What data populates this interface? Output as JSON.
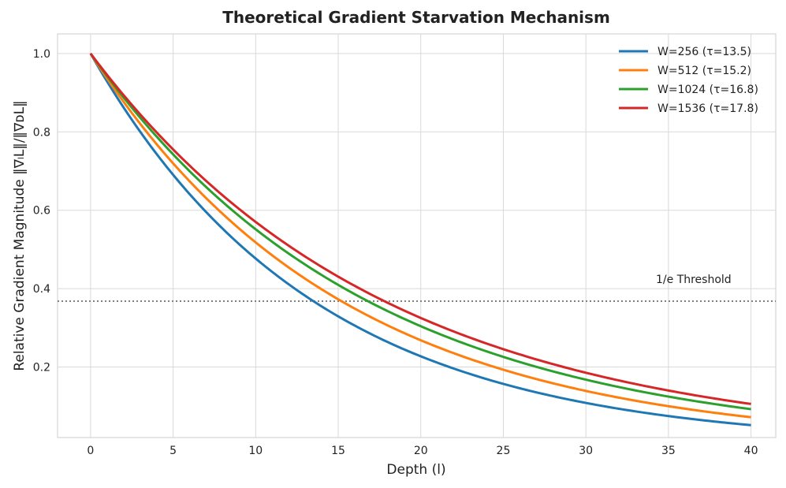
{
  "chart_data": {
    "type": "line",
    "title": "Theoretical Gradient Starvation Mechanism",
    "xlabel": "Depth (l)",
    "ylabel": "Relative Gradient Magnitude ‖∇ₗL‖/‖∇ᴅL‖",
    "xlim": [
      -2,
      41.5
    ],
    "ylim": [
      0.02,
      1.05
    ],
    "xticks": [
      0,
      5,
      10,
      15,
      20,
      25,
      30,
      35,
      40
    ],
    "yticks": [
      0.2,
      0.4,
      0.6,
      0.8,
      1.0
    ],
    "grid": true,
    "legend_position": "top-right",
    "x_range": [
      0,
      40
    ],
    "series": [
      {
        "name": "W=256 (τ=13.5)",
        "tau": 13.5,
        "color": "#1f77b4"
      },
      {
        "name": "W=512 (τ=15.2)",
        "tau": 15.2,
        "color": "#ff7f0e"
      },
      {
        "name": "W=1024 (τ=16.8)",
        "tau": 16.8,
        "color": "#2ca02c"
      },
      {
        "name": "W=1536 (τ=17.8)",
        "tau": 17.8,
        "color": "#d62728"
      }
    ],
    "threshold": {
      "label": "1/e Threshold",
      "value": 0.368,
      "color": "#808080"
    }
  }
}
